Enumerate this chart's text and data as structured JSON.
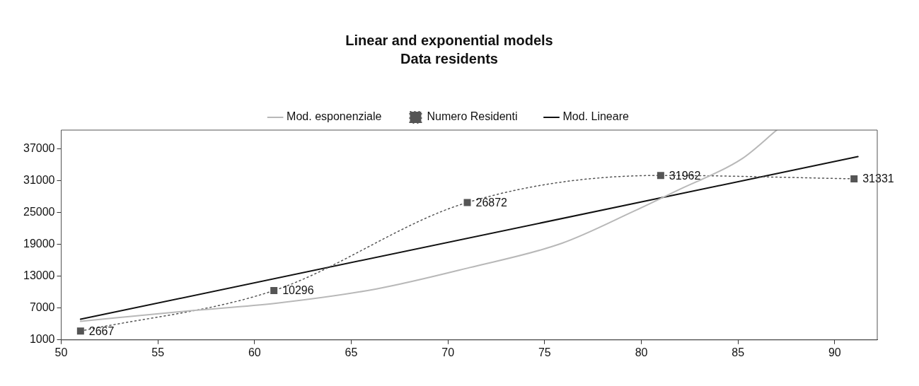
{
  "chart_data": {
    "type": "line",
    "title": "Linear and exponential models",
    "subtitle": "Data residents",
    "xlim": [
      50,
      92.2
    ],
    "xticks": [
      50,
      55,
      60,
      65,
      70,
      75,
      80,
      85,
      90
    ],
    "ylim": [
      1000,
      40500
    ],
    "yticks": [
      1000,
      7000,
      13000,
      19000,
      25000,
      31000,
      37000
    ],
    "grid": false,
    "legend": "top",
    "marker": "none",
    "series": [
      {
        "name": "Mod. esponenziale",
        "color": "#b8b8b8",
        "line_style": "solid",
        "x": [
          51,
          56.7,
          61.1,
          66.3,
          71.1,
          75.9,
          79.6,
          81.9,
          85.2,
          87
        ],
        "values": [
          4500,
          6500,
          7900,
          10600,
          14600,
          19200,
          25200,
          29200,
          35100,
          40500
        ]
      },
      {
        "name": "Numero Residenti",
        "color": "#555555",
        "line_style": "dotted",
        "marker": "square",
        "x": [
          51,
          61,
          71,
          81,
          91
        ],
        "values": [
          2667,
          10296,
          26872,
          31962,
          31331
        ],
        "value_labels": [
          "2667",
          "10296",
          "26872",
          "31962",
          "31331"
        ]
      },
      {
        "name": "Mod. Lineare",
        "color": "#111111",
        "line_style": "solid",
        "x": [
          51,
          91.2
        ],
        "values": [
          4900,
          35500
        ]
      }
    ]
  }
}
